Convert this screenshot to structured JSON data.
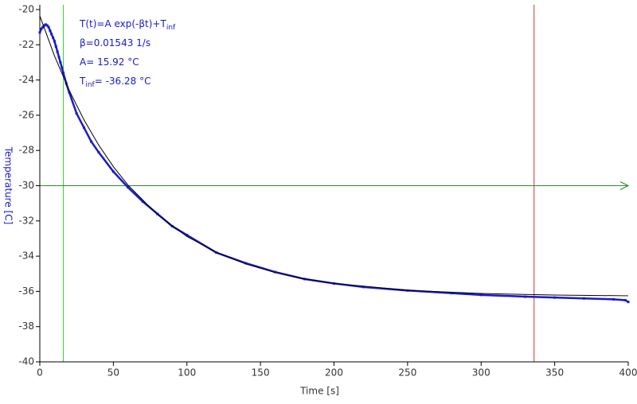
{
  "chart_data": {
    "type": "scatter",
    "xlabel": "Time [s]",
    "ylabel": "Temperature [C]",
    "xlim": [
      0,
      400
    ],
    "ylim": [
      -40,
      -20
    ],
    "xticks": [
      0,
      50,
      100,
      150,
      200,
      250,
      300,
      350,
      400
    ],
    "yticks": [
      -20,
      -22,
      -24,
      -26,
      -28,
      -30,
      -32,
      -34,
      -36,
      -38,
      -40
    ],
    "annotations": [
      {
        "text": "T(t)=A exp(-βt)+T",
        "sub": "inf"
      },
      {
        "text": "β=0.01543 1/s"
      },
      {
        "text": "A= 15.92 °C"
      },
      {
        "text": "T",
        "sub": "inf",
        "after": "= -36.28 °C"
      }
    ],
    "cursors": {
      "x": [
        16,
        336
      ],
      "x_colors": [
        "#33cc33",
        "#cc3333"
      ],
      "y": [
        -30
      ],
      "y_colors": [
        "#2e8b2e"
      ]
    },
    "series": [
      {
        "color": "#1a1acc",
        "x": [
          0,
          1,
          2,
          3,
          4,
          5,
          6,
          7,
          8,
          9,
          10,
          11,
          12,
          13,
          14,
          15,
          16,
          18,
          20,
          25,
          30,
          35,
          40,
          50,
          60,
          70,
          80,
          90,
          100,
          120,
          140,
          160,
          180,
          200,
          220,
          250,
          280,
          300,
          330,
          350,
          370,
          390,
          398,
          400
        ],
        "values": [
          -21.3,
          -21.1,
          -21.0,
          -20.9,
          -20.85,
          -20.9,
          -21.0,
          -21.2,
          -21.4,
          -21.6,
          -21.8,
          -22.1,
          -22.4,
          -22.7,
          -23.0,
          -23.3,
          -23.6,
          -24.2,
          -24.7,
          -25.9,
          -26.7,
          -27.5,
          -28.1,
          -29.2,
          -30.1,
          -30.9,
          -31.6,
          -32.3,
          -32.8,
          -33.8,
          -34.4,
          -34.9,
          -35.3,
          -35.55,
          -35.75,
          -35.95,
          -36.1,
          -36.2,
          -36.3,
          -36.35,
          -36.4,
          -36.45,
          -36.5,
          -36.6
        ]
      },
      {
        "color": "#000000",
        "line": true,
        "x": [
          0,
          10,
          20,
          30,
          40,
          50,
          60,
          80,
          100,
          120,
          140,
          160,
          180,
          200,
          250,
          300,
          350,
          400
        ],
        "values": [
          -20.36,
          -22.64,
          -24.59,
          -26.26,
          -27.69,
          -28.92,
          -29.97,
          -31.65,
          -32.88,
          -33.78,
          -34.44,
          -34.93,
          -35.29,
          -35.55,
          -35.94,
          -36.12,
          -36.21,
          -36.25
        ]
      }
    ]
  }
}
